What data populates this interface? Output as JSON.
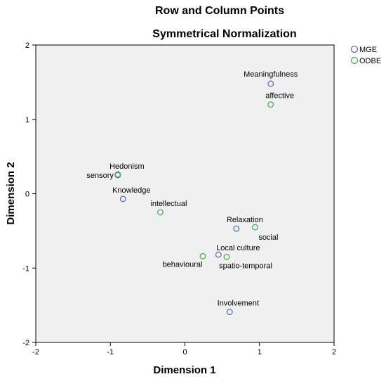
{
  "chart_data": {
    "type": "scatter",
    "title": "Row and Column Points",
    "subtitle": "Symmetrical Normalization",
    "xlabel": "Dimension 1",
    "ylabel": "Dimension 2",
    "xlim": [
      -2,
      2
    ],
    "ylim": [
      -2,
      2
    ],
    "xticks": [
      "-2",
      "-1",
      "0",
      "1",
      "2"
    ],
    "yticks": [
      "-2",
      "-1",
      "0",
      "1",
      "2"
    ],
    "grid": false,
    "legend_position": "top-right",
    "series": [
      {
        "name": "MGE",
        "color": "#5b6fb5",
        "points": [
          {
            "label": "Meaningfulness",
            "x": 1.15,
            "y": 1.48
          },
          {
            "label": "Hedonism",
            "x": -0.9,
            "y": 0.25
          },
          {
            "label": "Knowledge",
            "x": -0.83,
            "y": -0.07
          },
          {
            "label": "Relaxation",
            "x": 0.69,
            "y": -0.47
          },
          {
            "label": "Local culture",
            "x": 0.45,
            "y": -0.82
          },
          {
            "label": "Involvement",
            "x": 0.6,
            "y": -1.59
          }
        ]
      },
      {
        "name": "ODBE",
        "color": "#4caf50",
        "points": [
          {
            "label": "affective",
            "x": 1.15,
            "y": 1.2
          },
          {
            "label": "sensory",
            "x": -0.9,
            "y": 0.26
          },
          {
            "label": "intellectual",
            "x": -0.33,
            "y": -0.25
          },
          {
            "label": "social",
            "x": 0.94,
            "y": -0.45
          },
          {
            "label": "spatio-temporal",
            "x": 0.56,
            "y": -0.85
          },
          {
            "label": "behavioural",
            "x": 0.24,
            "y": -0.84
          }
        ]
      }
    ]
  }
}
